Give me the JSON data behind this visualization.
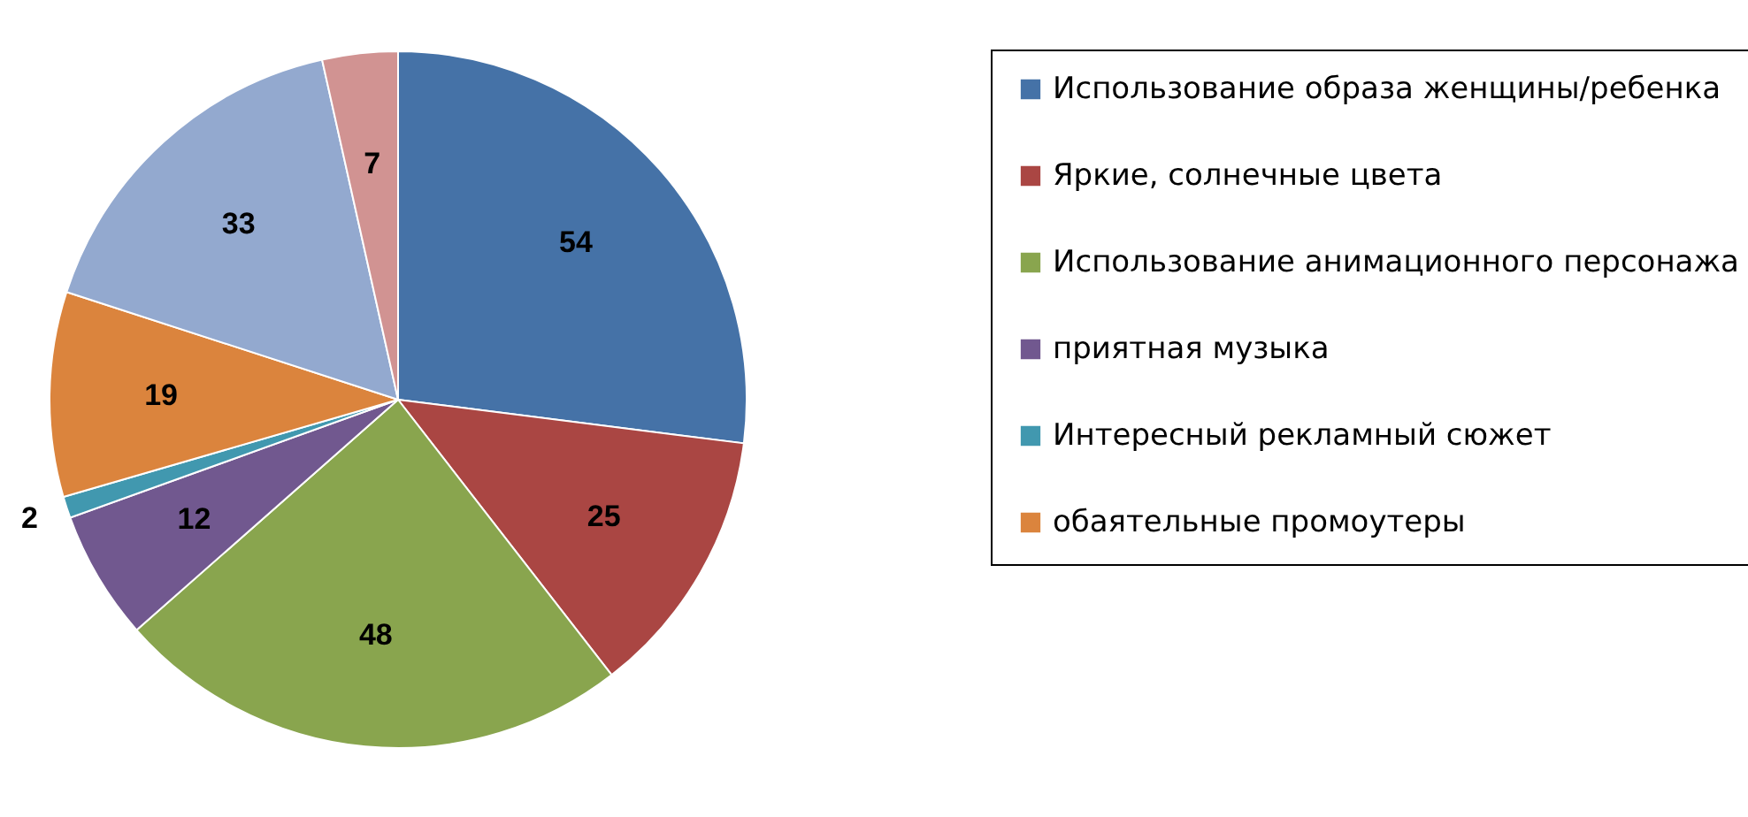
{
  "chart_data": {
    "type": "pie",
    "categories": [
      "Использование образа женщины/ребенка",
      "Яркие, солнечные цвета",
      "Использование анимационного персонажа",
      "приятная музыка",
      "Интересный рекламный сюжет",
      "обаятельные промоутеры",
      null,
      null
    ],
    "values": [
      54,
      25,
      48,
      12,
      2,
      19,
      33,
      7
    ],
    "colors": [
      "#4572a7",
      "#aa4643",
      "#89a54e",
      "#71588f",
      "#4198af",
      "#db843d",
      "#93a9cf",
      "#d19392"
    ],
    "data_labels": true,
    "legend": "right"
  }
}
